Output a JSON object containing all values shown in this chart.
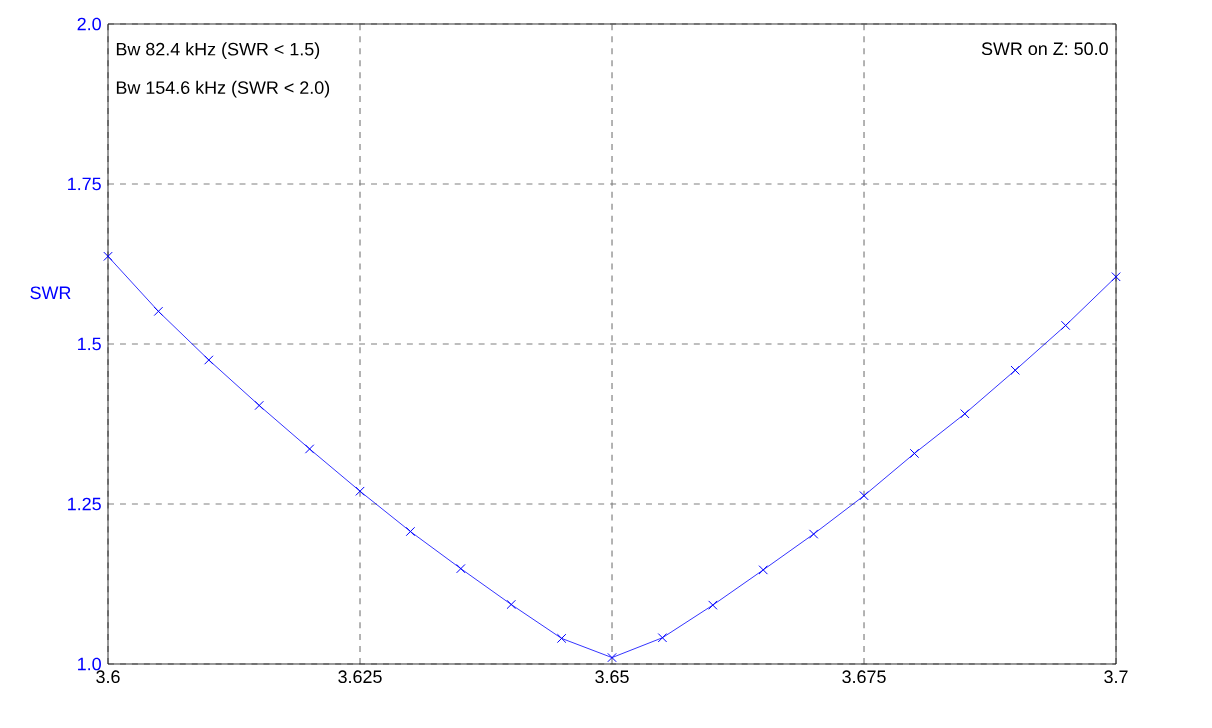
{
  "chart_data": {
    "type": "line",
    "ylabel": "SWR",
    "annotations": [
      "Bw 82.4 kHz (SWR < 1.5)",
      "Bw 154.6 kHz (SWR < 2.0)",
      "SWR on Z: 50.0"
    ],
    "x": [
      3.6,
      3.605,
      3.61,
      3.615,
      3.62,
      3.625,
      3.63,
      3.635,
      3.64,
      3.645,
      3.65,
      3.655,
      3.66,
      3.665,
      3.67,
      3.675,
      3.68,
      3.685,
      3.69,
      3.695,
      3.7
    ],
    "series": [
      {
        "color": "#0000ff",
        "values": [
          1.637,
          1.551,
          1.475,
          1.404,
          1.336,
          1.27,
          1.207,
          1.149,
          1.093,
          1.04,
          1.01,
          1.041,
          1.092,
          1.147,
          1.203,
          1.263,
          1.329,
          1.391,
          1.459,
          1.529,
          1.605
        ]
      }
    ],
    "xlim": [
      3.6,
      3.7
    ],
    "ylim": [
      1.0,
      2.0
    ],
    "xticks": [
      3.6,
      3.625,
      3.65,
      3.675,
      3.7
    ],
    "yticks": [
      {
        "value": 1.0,
        "label": "1.0"
      },
      1.25,
      1.5,
      1.75,
      {
        "value": 2.0,
        "label": "2.0"
      }
    ],
    "grid": true,
    "marker": "cross",
    "line_style": "solid"
  }
}
